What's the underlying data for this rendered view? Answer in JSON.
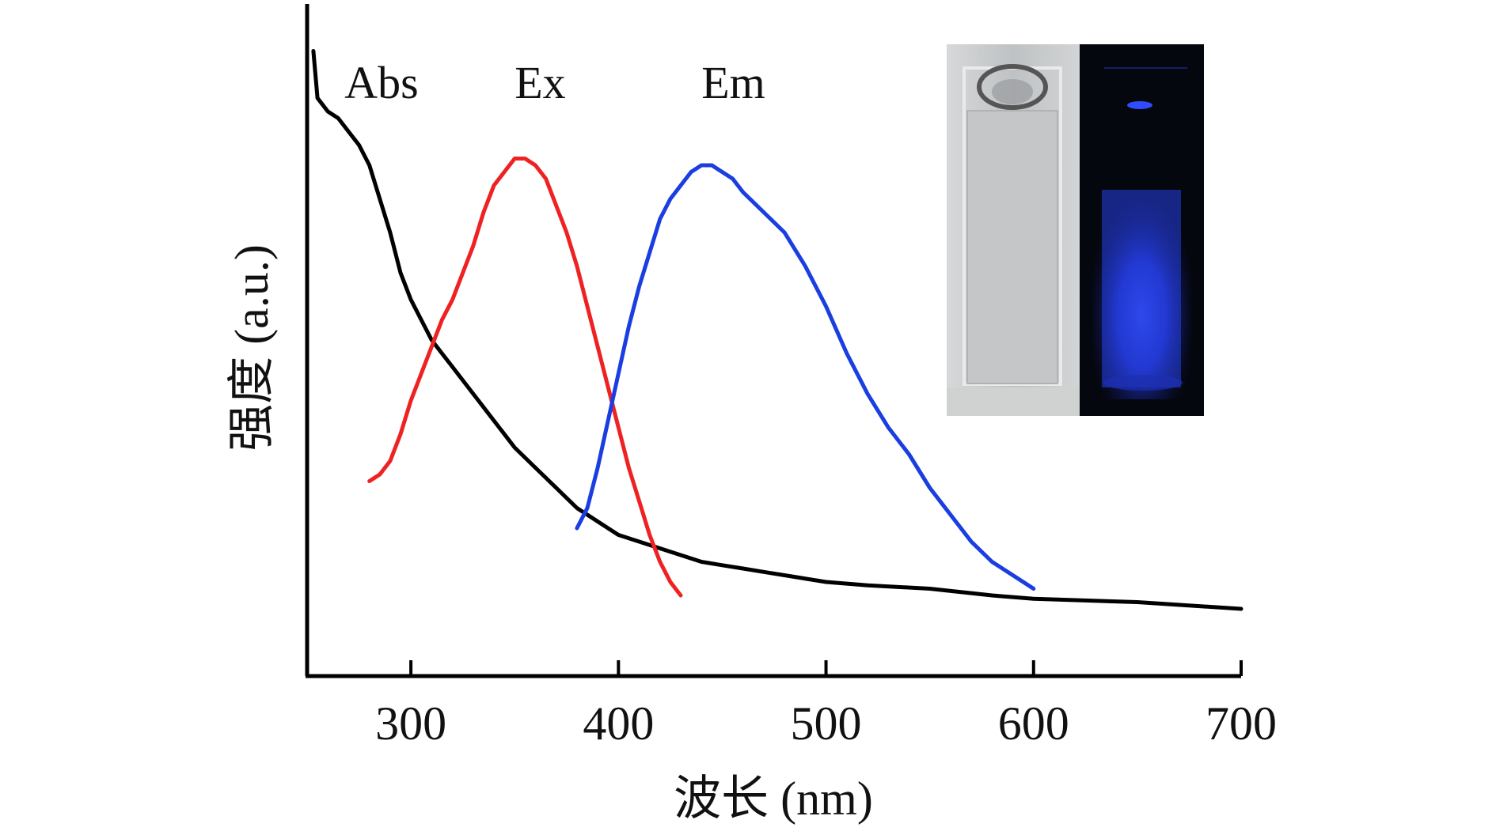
{
  "chart_data": {
    "type": "line",
    "xlabel": "波长 (nm)",
    "ylabel": "强度 (a.u.)",
    "xlim": [
      250,
      700
    ],
    "ylim": [
      0,
      1
    ],
    "x_ticks": [
      300,
      400,
      500,
      600,
      700
    ],
    "y_ticks": [],
    "grid": false,
    "legend": "none",
    "series": [
      {
        "name": "Abs",
        "color": "#000000",
        "points": [
          [
            253,
            0.93
          ],
          [
            255,
            0.86
          ],
          [
            260,
            0.84
          ],
          [
            265,
            0.83
          ],
          [
            270,
            0.81
          ],
          [
            275,
            0.79
          ],
          [
            280,
            0.76
          ],
          [
            285,
            0.71
          ],
          [
            290,
            0.66
          ],
          [
            295,
            0.6
          ],
          [
            300,
            0.56
          ],
          [
            305,
            0.53
          ],
          [
            310,
            0.5
          ],
          [
            315,
            0.48
          ],
          [
            320,
            0.46
          ],
          [
            330,
            0.42
          ],
          [
            340,
            0.38
          ],
          [
            350,
            0.34
          ],
          [
            360,
            0.31
          ],
          [
            370,
            0.28
          ],
          [
            380,
            0.25
          ],
          [
            390,
            0.23
          ],
          [
            400,
            0.21
          ],
          [
            410,
            0.2
          ],
          [
            420,
            0.19
          ],
          [
            430,
            0.18
          ],
          [
            440,
            0.17
          ],
          [
            450,
            0.165
          ],
          [
            460,
            0.16
          ],
          [
            470,
            0.155
          ],
          [
            480,
            0.15
          ],
          [
            500,
            0.14
          ],
          [
            520,
            0.135
          ],
          [
            550,
            0.13
          ],
          [
            580,
            0.12
          ],
          [
            600,
            0.115
          ],
          [
            650,
            0.11
          ],
          [
            700,
            0.1
          ]
        ]
      },
      {
        "name": "Ex",
        "color": "#ee2222",
        "points": [
          [
            280,
            0.29
          ],
          [
            285,
            0.3
          ],
          [
            290,
            0.32
          ],
          [
            295,
            0.36
          ],
          [
            300,
            0.41
          ],
          [
            305,
            0.45
          ],
          [
            310,
            0.49
          ],
          [
            315,
            0.53
          ],
          [
            320,
            0.56
          ],
          [
            325,
            0.6
          ],
          [
            330,
            0.64
          ],
          [
            335,
            0.69
          ],
          [
            340,
            0.73
          ],
          [
            345,
            0.75
          ],
          [
            350,
            0.77
          ],
          [
            355,
            0.77
          ],
          [
            360,
            0.76
          ],
          [
            365,
            0.74
          ],
          [
            370,
            0.7
          ],
          [
            375,
            0.66
          ],
          [
            380,
            0.61
          ],
          [
            385,
            0.55
          ],
          [
            390,
            0.49
          ],
          [
            395,
            0.43
          ],
          [
            400,
            0.37
          ],
          [
            405,
            0.31
          ],
          [
            410,
            0.26
          ],
          [
            415,
            0.21
          ],
          [
            420,
            0.17
          ],
          [
            425,
            0.14
          ],
          [
            430,
            0.12
          ]
        ]
      },
      {
        "name": "Em",
        "color": "#1a3ee0",
        "points": [
          [
            380,
            0.22
          ],
          [
            385,
            0.25
          ],
          [
            390,
            0.31
          ],
          [
            395,
            0.38
          ],
          [
            400,
            0.45
          ],
          [
            405,
            0.52
          ],
          [
            410,
            0.58
          ],
          [
            415,
            0.63
          ],
          [
            420,
            0.68
          ],
          [
            425,
            0.71
          ],
          [
            430,
            0.73
          ],
          [
            435,
            0.75
          ],
          [
            440,
            0.76
          ],
          [
            445,
            0.76
          ],
          [
            450,
            0.75
          ],
          [
            455,
            0.74
          ],
          [
            460,
            0.72
          ],
          [
            470,
            0.69
          ],
          [
            480,
            0.66
          ],
          [
            490,
            0.61
          ],
          [
            500,
            0.55
          ],
          [
            510,
            0.48
          ],
          [
            520,
            0.42
          ],
          [
            530,
            0.37
          ],
          [
            540,
            0.33
          ],
          [
            550,
            0.28
          ],
          [
            560,
            0.24
          ],
          [
            570,
            0.2
          ],
          [
            580,
            0.17
          ],
          [
            590,
            0.15
          ],
          [
            600,
            0.13
          ]
        ]
      }
    ],
    "annotations": [
      {
        "text": "Abs",
        "x": 268,
        "y": 0.86
      },
      {
        "text": "Ex",
        "x": 350,
        "y": 0.86
      },
      {
        "text": "Em",
        "x": 440,
        "y": 0.86
      }
    ],
    "inset": {
      "type": "photo",
      "panels": [
        {
          "name": "cuvette-daylight",
          "background": "#c8cbcc",
          "glow": "#ffffff"
        },
        {
          "name": "cuvette-uv",
          "background": "#05070f",
          "glow": "#2a44ff"
        }
      ]
    }
  }
}
